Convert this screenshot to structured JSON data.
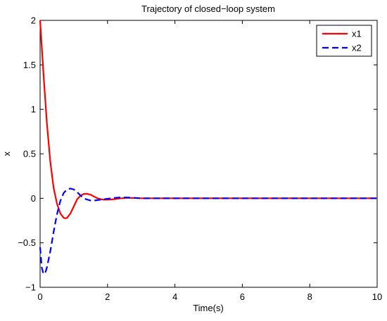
{
  "chart_data": {
    "type": "line",
    "title": "Trajectory of closed−loop system",
    "xlabel": "Time(s)",
    "ylabel": "x",
    "xlim": [
      0,
      10
    ],
    "ylim": [
      -1,
      2
    ],
    "xticks": [
      0,
      2,
      4,
      6,
      8,
      10
    ],
    "yticks": [
      -1,
      -0.5,
      0,
      0.5,
      1,
      1.5,
      2
    ],
    "xtick_labels": [
      "0",
      "2",
      "4",
      "6",
      "8",
      "10"
    ],
    "ytick_labels": [
      "−1",
      "−0.5",
      "0",
      "0.5",
      "1",
      "1.5",
      "2"
    ],
    "grid": false,
    "legend_position": "top-right",
    "series": [
      {
        "name": "x1",
        "color": "#ff0000",
        "style": "solid",
        "x": [
          0,
          0.1,
          0.2,
          0.3,
          0.4,
          0.5,
          0.6,
          0.7,
          0.75,
          0.8,
          0.9,
          1.0,
          1.1,
          1.2,
          1.3,
          1.4,
          1.5,
          1.6,
          1.7,
          1.8,
          1.9,
          2.0,
          2.2,
          2.4,
          2.6,
          2.8,
          3.0,
          4,
          5,
          6,
          7,
          8,
          9,
          10
        ],
        "y": [
          2,
          1.4,
          0.85,
          0.42,
          0.12,
          -0.06,
          -0.17,
          -0.22,
          -0.225,
          -0.22,
          -0.17,
          -0.09,
          -0.01,
          0.03,
          0.05,
          0.05,
          0.04,
          0.02,
          0.0,
          -0.01,
          -0.015,
          -0.015,
          -0.01,
          0.0,
          0.005,
          0.003,
          0,
          0,
          0,
          0,
          0,
          0,
          0,
          0
        ]
      },
      {
        "name": "x2",
        "color": "#0000ff",
        "style": "dashed",
        "x": [
          0,
          0.05,
          0.1,
          0.15,
          0.2,
          0.3,
          0.4,
          0.5,
          0.6,
          0.7,
          0.8,
          0.9,
          1.0,
          1.1,
          1.2,
          1.3,
          1.4,
          1.5,
          1.6,
          1.7,
          1.8,
          1.9,
          2.0,
          2.2,
          2.4,
          2.6,
          2.8,
          3.0,
          4,
          5,
          6,
          7,
          8,
          9,
          10
        ],
        "y": [
          -0.55,
          -0.78,
          -0.85,
          -0.84,
          -0.78,
          -0.6,
          -0.38,
          -0.18,
          -0.03,
          0.06,
          0.1,
          0.11,
          0.1,
          0.07,
          0.03,
          0.0,
          -0.015,
          -0.025,
          -0.025,
          -0.02,
          -0.015,
          -0.01,
          -0.005,
          0.005,
          0.01,
          0.01,
          0.005,
          0,
          0,
          0,
          0,
          0,
          0,
          0,
          0
        ]
      }
    ]
  }
}
